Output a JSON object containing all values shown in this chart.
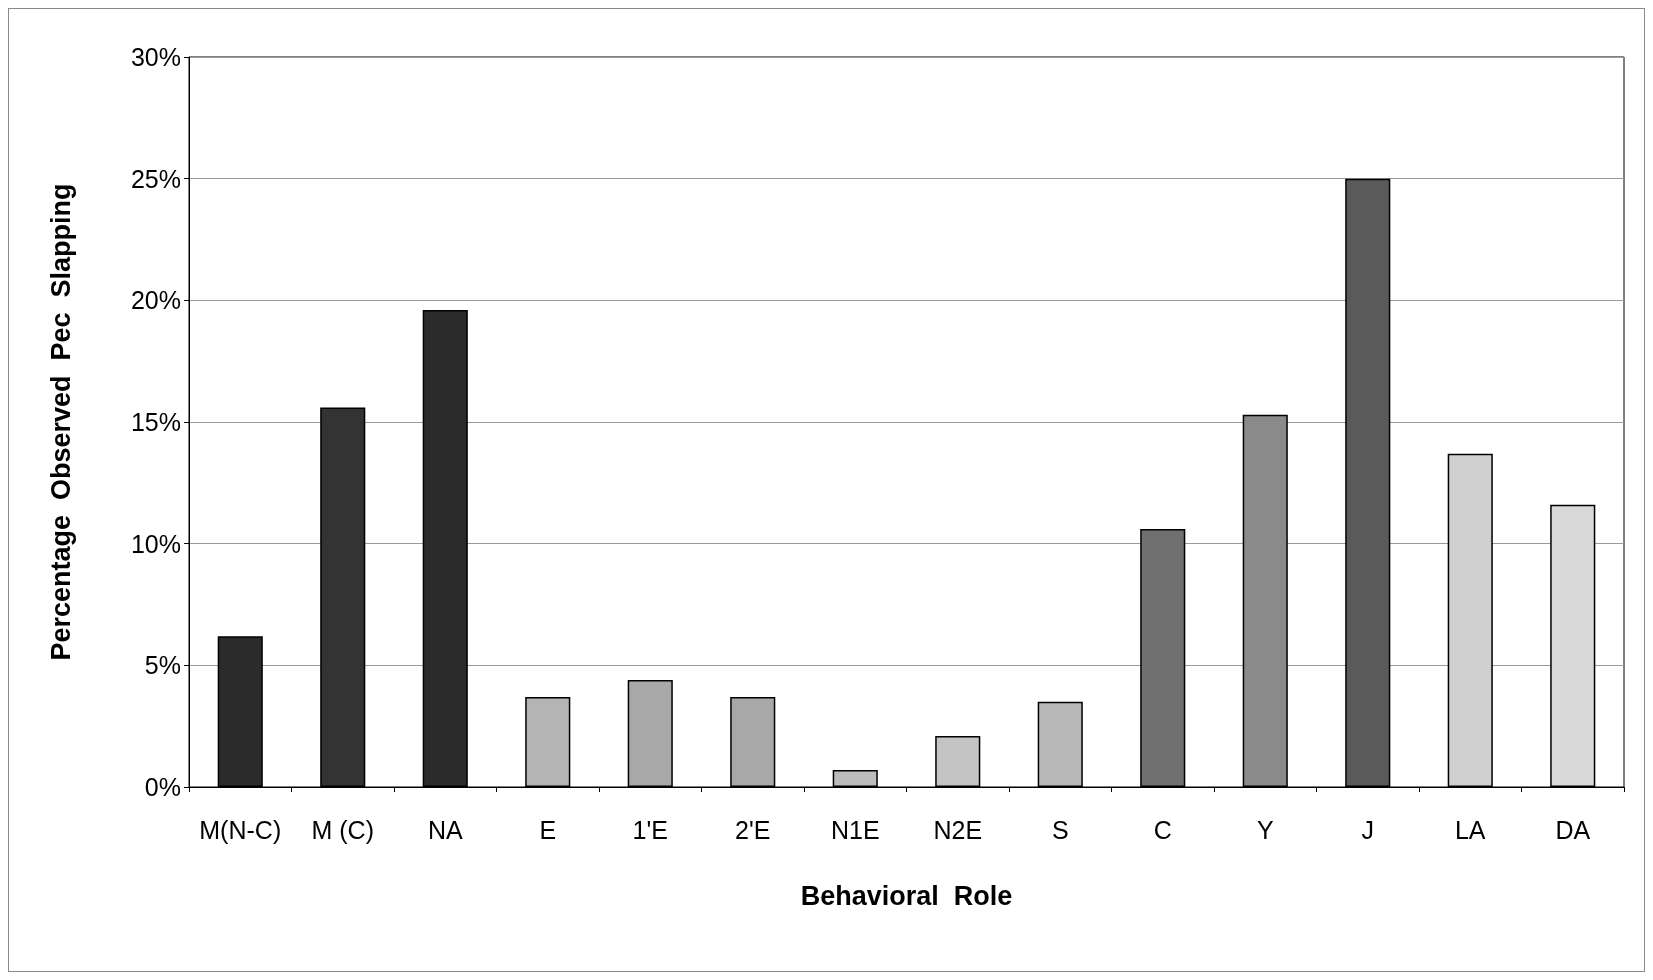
{
  "chart_data": {
    "type": "bar",
    "xlabel": "Behavioral  Role",
    "ylabel": "Percentage  Observed  Pec  Slapping",
    "categories": [
      "M(N-C)",
      "M (C)",
      "NA",
      "E",
      "1'E",
      "2'E",
      "N1E",
      "N2E",
      "S",
      "C",
      "Y",
      "J",
      "LA",
      "DA"
    ],
    "values": [
      6.2,
      15.6,
      19.6,
      3.7,
      4.4,
      3.7,
      0.7,
      2.1,
      3.5,
      10.6,
      15.3,
      25.0,
      13.7,
      11.6
    ],
    "colors": [
      "#2b2b2b",
      "#333333",
      "#2b2b2b",
      "#b4b4b4",
      "#a8a8a8",
      "#a8a8a8",
      "#bcbcbc",
      "#c4c4c4",
      "#b8b8b8",
      "#707070",
      "#8a8a8a",
      "#5a5a5a",
      "#d0d0d0",
      "#d8d8d8"
    ],
    "ylim": [
      0,
      30
    ],
    "yticks": [
      {
        "value": 0,
        "label": "0%"
      },
      {
        "value": 5,
        "label": "5%"
      },
      {
        "value": 10,
        "label": "10%"
      },
      {
        "value": 15,
        "label": "15%"
      },
      {
        "value": 20,
        "label": "20%"
      },
      {
        "value": 25,
        "label": "25%"
      },
      {
        "value": 30,
        "label": "30%"
      }
    ],
    "grid": "y"
  }
}
